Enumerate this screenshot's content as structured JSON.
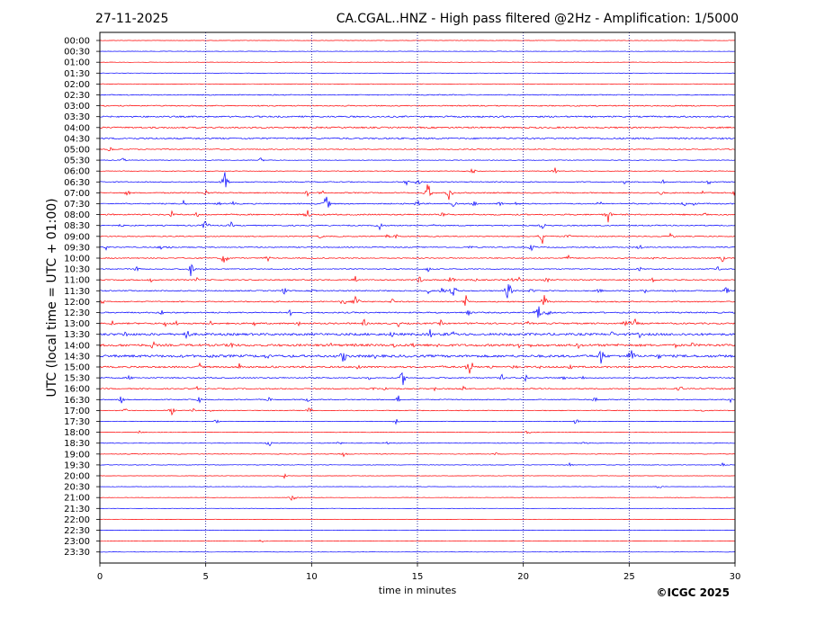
{
  "chart_data": {
    "type": "line",
    "title": "CA.CGAL..HNZ - High pass filtered @2Hz - Amplification: 1/5000",
    "date": "27-11-2025",
    "xlabel": "time in minutes",
    "ylabel": "UTC (local time = UTC + 01:00)",
    "copyright": "©ICGC 2025",
    "xlim": [
      0,
      30
    ],
    "x_ticks": [
      "0",
      "5",
      "10",
      "15",
      "20",
      "25",
      "30"
    ],
    "vertical_grid_minutes": [
      5,
      10,
      15,
      20,
      25
    ],
    "grid": "vertical dotted lines at 5-minute intervals",
    "trace_colors": [
      "#ff0000",
      "#0000ff"
    ],
    "rows": [
      "00:00",
      "00:30",
      "01:00",
      "01:30",
      "02:00",
      "02:30",
      "03:00",
      "03:30",
      "04:00",
      "04:30",
      "05:00",
      "05:30",
      "06:00",
      "06:30",
      "07:00",
      "07:30",
      "08:00",
      "08:30",
      "09:00",
      "09:30",
      "10:00",
      "10:30",
      "11:00",
      "11:30",
      "12:00",
      "12:30",
      "13:00",
      "13:30",
      "14:00",
      "14:30",
      "15:00",
      "15:30",
      "16:00",
      "16:30",
      "17:00",
      "17:30",
      "18:00",
      "18:30",
      "19:00",
      "19:30",
      "20:00",
      "20:30",
      "21:00",
      "21:30",
      "22:00",
      "22:30",
      "23:00",
      "23:30"
    ],
    "noise_level": [
      0.2,
      0.2,
      0.2,
      0.2,
      0.3,
      0.5,
      0.6,
      0.8,
      0.8,
      0.8,
      0.5,
      0.3,
      0.3,
      0.5,
      0.6,
      0.6,
      0.7,
      0.6,
      0.5,
      0.5,
      0.5,
      0.5,
      0.6,
      0.6,
      0.6,
      0.7,
      0.8,
      1.2,
      1.2,
      1.3,
      0.9,
      0.6,
      0.6,
      0.5,
      0.4,
      0.3,
      0.3,
      0.3,
      0.3,
      0.3,
      0.2,
      0.2,
      0.2,
      0.2,
      0.2,
      0.2,
      0.2,
      0.2
    ],
    "events": [
      [
        10,
        0.5,
        4
      ],
      [
        11,
        1.1,
        3
      ],
      [
        11,
        7.6,
        3
      ],
      [
        12,
        17.6,
        4
      ],
      [
        12,
        21.5,
        4
      ],
      [
        13,
        5.9,
        12
      ],
      [
        13,
        14.5,
        4
      ],
      [
        13,
        15.0,
        5
      ],
      [
        13,
        24.8,
        3
      ],
      [
        13,
        26.6,
        3
      ],
      [
        13,
        28.8,
        5
      ],
      [
        14,
        1.3,
        4
      ],
      [
        14,
        5.0,
        4
      ],
      [
        14,
        9.8,
        4
      ],
      [
        14,
        10.5,
        4
      ],
      [
        14,
        15.5,
        13
      ],
      [
        14,
        16.5,
        10
      ],
      [
        14,
        26.5,
        4
      ],
      [
        14,
        28.5,
        4
      ],
      [
        14,
        30.0,
        4
      ],
      [
        15,
        3.9,
        7
      ],
      [
        15,
        5.6,
        3
      ],
      [
        15,
        6.3,
        3
      ],
      [
        15,
        10.7,
        12
      ],
      [
        15,
        15.0,
        5
      ],
      [
        15,
        16.7,
        4
      ],
      [
        15,
        17.7,
        4
      ],
      [
        15,
        18.9,
        4
      ],
      [
        15,
        19.7,
        4
      ],
      [
        15,
        23.6,
        4
      ],
      [
        15,
        27.6,
        4
      ],
      [
        15,
        28.0,
        4
      ],
      [
        16,
        3.4,
        4
      ],
      [
        16,
        4.6,
        4
      ],
      [
        16,
        9.8,
        7
      ],
      [
        16,
        16.2,
        3
      ],
      [
        16,
        24.0,
        10
      ],
      [
        16,
        28.6,
        4
      ],
      [
        17,
        1.0,
        3
      ],
      [
        17,
        5.0,
        9
      ],
      [
        17,
        6.2,
        4
      ],
      [
        17,
        13.2,
        8
      ],
      [
        17,
        15.8,
        3
      ],
      [
        17,
        20.9,
        5
      ],
      [
        18,
        10.4,
        3
      ],
      [
        18,
        13.6,
        3
      ],
      [
        18,
        14.0,
        3
      ],
      [
        18,
        20.9,
        9
      ],
      [
        18,
        22.1,
        4
      ],
      [
        18,
        27.0,
        6
      ],
      [
        19,
        0.3,
        3
      ],
      [
        19,
        2.9,
        5
      ],
      [
        19,
        3.3,
        3
      ],
      [
        19,
        17.5,
        3
      ],
      [
        19,
        20.4,
        5
      ],
      [
        19,
        25.5,
        4
      ],
      [
        20,
        5.9,
        11
      ],
      [
        20,
        7.9,
        5
      ],
      [
        20,
        22.1,
        5
      ],
      [
        20,
        26.2,
        3
      ],
      [
        20,
        29.4,
        5
      ],
      [
        21,
        1.8,
        6
      ],
      [
        21,
        4.3,
        9
      ],
      [
        21,
        15.5,
        4
      ],
      [
        21,
        25.5,
        3
      ],
      [
        21,
        29.2,
        3
      ],
      [
        22,
        2.4,
        3
      ],
      [
        22,
        4.6,
        3
      ],
      [
        22,
        12.1,
        7
      ],
      [
        22,
        15.1,
        5
      ],
      [
        22,
        16.6,
        6
      ],
      [
        22,
        17.7,
        4
      ],
      [
        22,
        19.4,
        4
      ],
      [
        22,
        19.8,
        4
      ],
      [
        22,
        21.1,
        4
      ],
      [
        22,
        26.1,
        4
      ],
      [
        23,
        8.7,
        5
      ],
      [
        23,
        10.1,
        4
      ],
      [
        23,
        15.5,
        4
      ],
      [
        23,
        16.2,
        6
      ],
      [
        23,
        16.7,
        10
      ],
      [
        23,
        19.3,
        14
      ],
      [
        23,
        20.4,
        4
      ],
      [
        23,
        23.6,
        4
      ],
      [
        23,
        25.7,
        6
      ],
      [
        23,
        27.1,
        3
      ],
      [
        23,
        29.6,
        6
      ],
      [
        24,
        0.1,
        4
      ],
      [
        24,
        11.5,
        7
      ],
      [
        24,
        12.1,
        12
      ],
      [
        24,
        13.8,
        4
      ],
      [
        24,
        17.3,
        9
      ],
      [
        24,
        21.0,
        10
      ],
      [
        25,
        2.9,
        4
      ],
      [
        25,
        9.0,
        4
      ],
      [
        25,
        17.4,
        6
      ],
      [
        25,
        20.7,
        14
      ],
      [
        25,
        21.2,
        6
      ],
      [
        26,
        0.6,
        4
      ],
      [
        26,
        3.1,
        4
      ],
      [
        26,
        3.6,
        4
      ],
      [
        26,
        5.2,
        5
      ],
      [
        26,
        7.3,
        3
      ],
      [
        26,
        9.4,
        4
      ],
      [
        26,
        12.5,
        5
      ],
      [
        26,
        14.1,
        4
      ],
      [
        26,
        16.1,
        4
      ],
      [
        26,
        17.8,
        3
      ],
      [
        26,
        20.2,
        3
      ],
      [
        26,
        24.8,
        4
      ],
      [
        26,
        25.0,
        4
      ],
      [
        26,
        25.3,
        6
      ],
      [
        27,
        1.2,
        5
      ],
      [
        27,
        4.1,
        9
      ],
      [
        27,
        13.8,
        5
      ],
      [
        27,
        15.6,
        6
      ],
      [
        27,
        16.3,
        4
      ],
      [
        27,
        16.7,
        5
      ],
      [
        27,
        24.2,
        4
      ],
      [
        27,
        25.5,
        4
      ],
      [
        28,
        1.2,
        3
      ],
      [
        28,
        2.5,
        6
      ],
      [
        28,
        6.2,
        6
      ],
      [
        28,
        10.9,
        4
      ],
      [
        28,
        12.0,
        3
      ],
      [
        28,
        13.9,
        4
      ],
      [
        28,
        14.8,
        4
      ],
      [
        28,
        16.0,
        4
      ],
      [
        28,
        19.8,
        4
      ],
      [
        28,
        20.4,
        3
      ],
      [
        28,
        22.6,
        4
      ],
      [
        28,
        24.5,
        4
      ],
      [
        28,
        27.2,
        3
      ],
      [
        28,
        28.0,
        4
      ],
      [
        29,
        4.0,
        4
      ],
      [
        29,
        5.3,
        5
      ],
      [
        29,
        7.9,
        5
      ],
      [
        29,
        11.5,
        10
      ],
      [
        29,
        13.0,
        3
      ],
      [
        29,
        14.7,
        4
      ],
      [
        29,
        23.7,
        13
      ],
      [
        29,
        25.1,
        13
      ],
      [
        29,
        26.4,
        4
      ],
      [
        30,
        4.7,
        5
      ],
      [
        30,
        6.6,
        5
      ],
      [
        30,
        8.2,
        3
      ],
      [
        30,
        12.2,
        5
      ],
      [
        30,
        16.2,
        4
      ],
      [
        30,
        17.3,
        3
      ],
      [
        30,
        17.5,
        12
      ],
      [
        30,
        18.5,
        4
      ],
      [
        30,
        19.6,
        4
      ],
      [
        30,
        20.7,
        4
      ],
      [
        30,
        22.2,
        4
      ],
      [
        31,
        1.4,
        4
      ],
      [
        31,
        12.7,
        3
      ],
      [
        31,
        14.3,
        10
      ],
      [
        31,
        19.0,
        4
      ],
      [
        31,
        20.1,
        6
      ],
      [
        31,
        21.9,
        3
      ],
      [
        31,
        22.8,
        3
      ],
      [
        32,
        4.6,
        3
      ],
      [
        32,
        12.9,
        4
      ],
      [
        32,
        13.5,
        4
      ],
      [
        32,
        15.8,
        3
      ],
      [
        32,
        17.2,
        4
      ],
      [
        32,
        27.4,
        6
      ],
      [
        32,
        29.4,
        3
      ],
      [
        33,
        1.0,
        5
      ],
      [
        33,
        4.7,
        4
      ],
      [
        33,
        8.0,
        3
      ],
      [
        33,
        9.8,
        3
      ],
      [
        33,
        14.1,
        5
      ],
      [
        33,
        23.4,
        4
      ],
      [
        33,
        29.8,
        4
      ],
      [
        34,
        1.2,
        3
      ],
      [
        34,
        3.4,
        5
      ],
      [
        34,
        4.4,
        3
      ],
      [
        34,
        5.2,
        3
      ],
      [
        34,
        9.9,
        5
      ],
      [
        34,
        28.4,
        4
      ],
      [
        35,
        5.5,
        3
      ],
      [
        35,
        14.0,
        4
      ],
      [
        35,
        22.5,
        5
      ],
      [
        36,
        1.9,
        3
      ],
      [
        36,
        20.2,
        3
      ],
      [
        37,
        8.0,
        4
      ],
      [
        37,
        11.3,
        3
      ],
      [
        37,
        13.5,
        3
      ],
      [
        37,
        22.9,
        3
      ],
      [
        38,
        11.5,
        5
      ],
      [
        38,
        18.7,
        2
      ],
      [
        39,
        22.2,
        3
      ],
      [
        39,
        29.4,
        3
      ],
      [
        40,
        8.7,
        3
      ],
      [
        41,
        26.4,
        3
      ],
      [
        42,
        9.1,
        6
      ],
      [
        46,
        7.6,
        3
      ]
    ]
  }
}
